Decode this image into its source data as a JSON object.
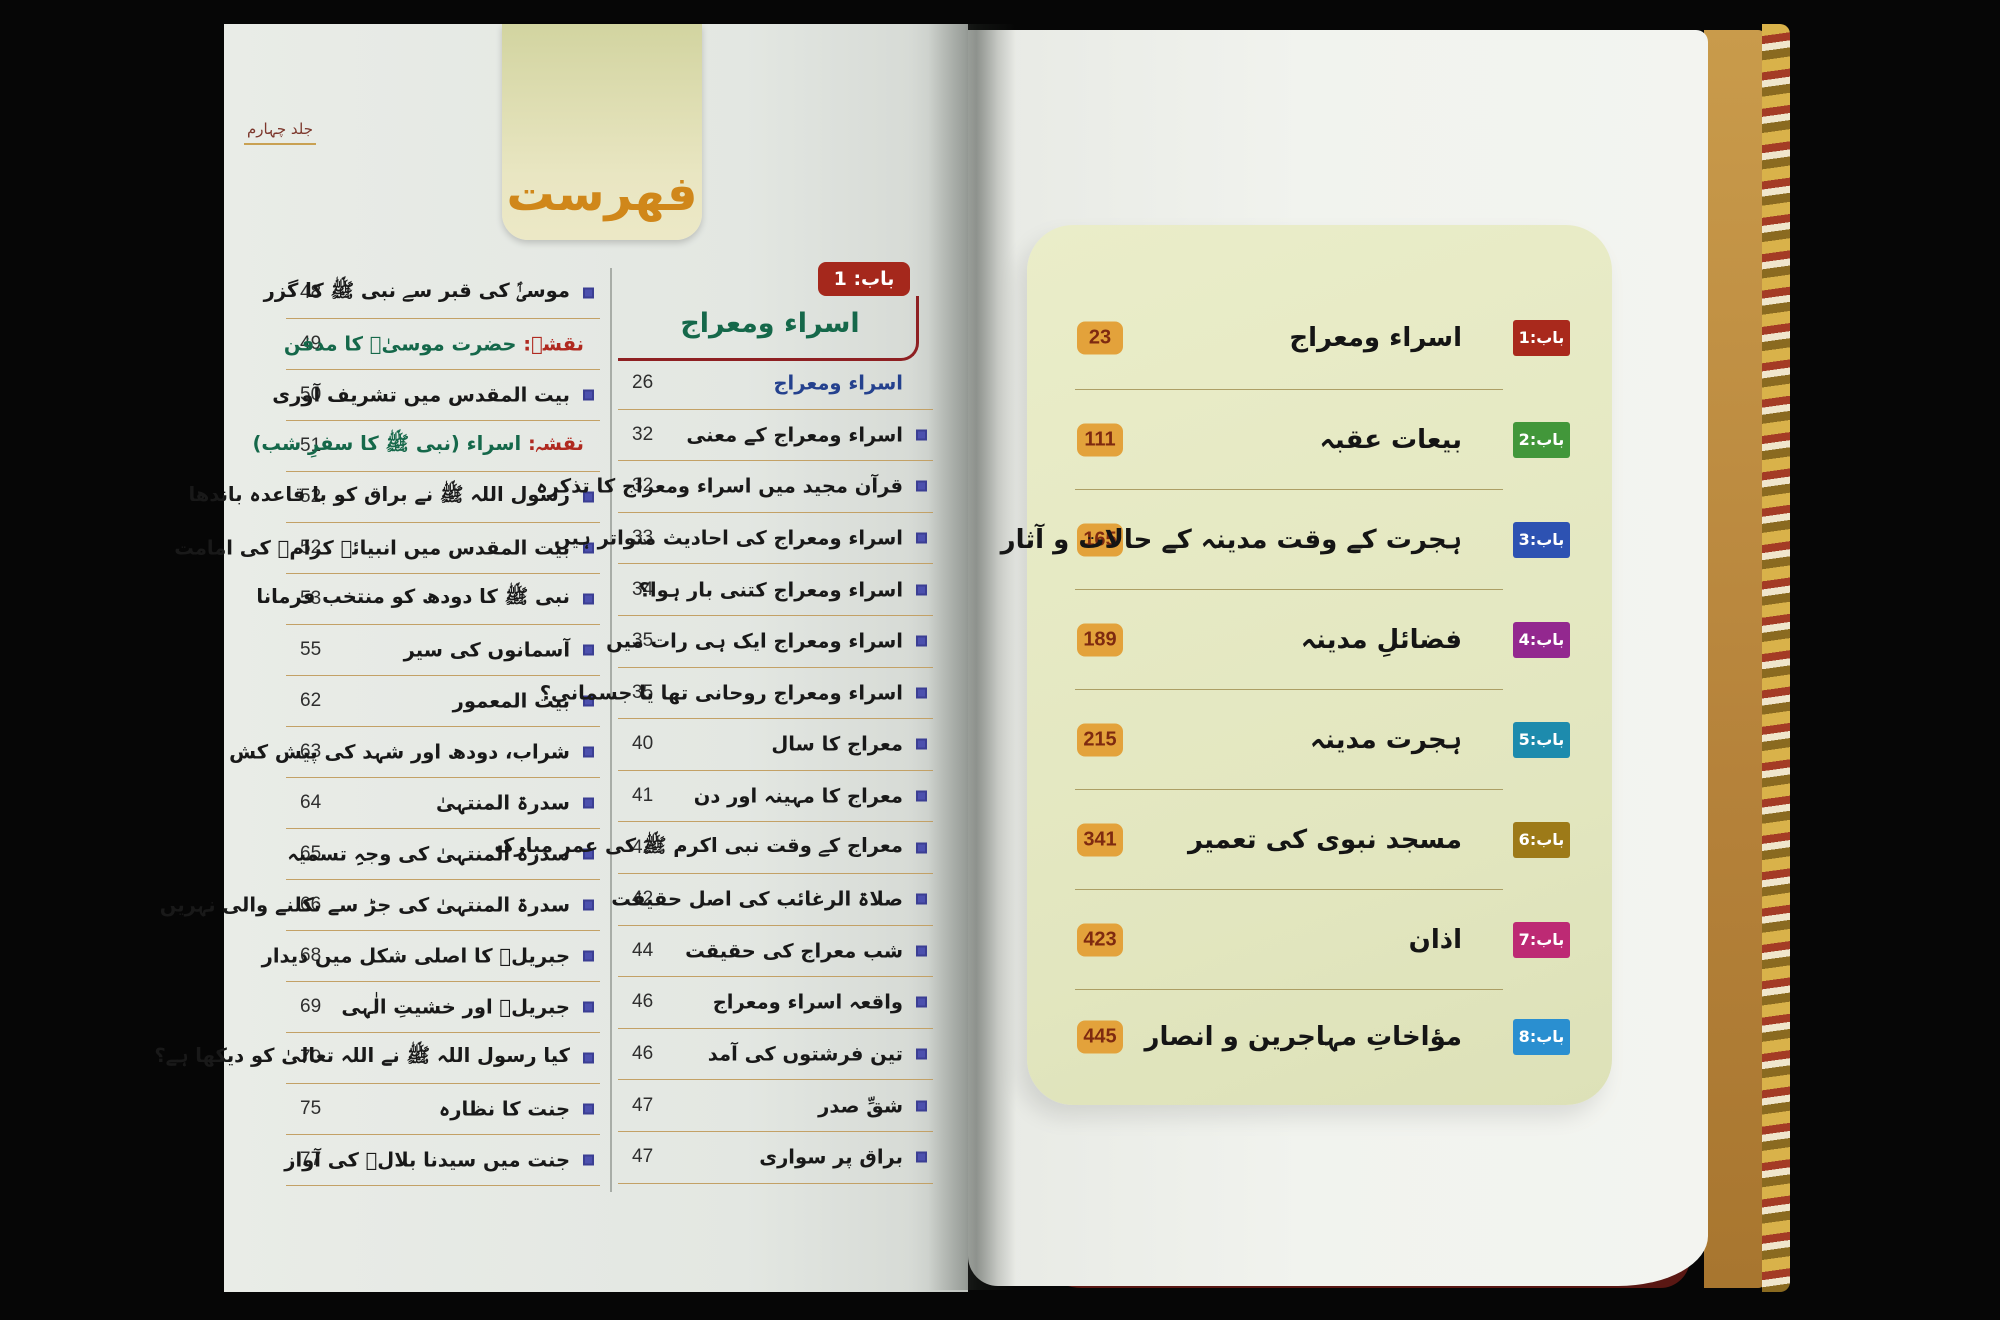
{
  "volume_label": "جلد چہارم",
  "toc_tab_label": "فهرست",
  "left_page": {
    "section_header": {
      "badge": "باب: 1",
      "title": "اسراء ومعراج"
    },
    "column_a": [
      {
        "page": "48",
        "text": "موسیٰؑ کی قبر سے نبی ﷺ کا گزر",
        "bullet": true
      },
      {
        "page": "49",
        "prefix": "نقشہ:",
        "text": "حضرت موسیٰؑ کا مدفن",
        "bullet": false
      },
      {
        "page": "50",
        "text": "بیت المقدس میں تشریف آوری",
        "bullet": true
      },
      {
        "page": "51",
        "prefix": "نقشہ:",
        "text": "اسراء (نبی ﷺ کا سفرِ شب)",
        "bullet": false
      },
      {
        "page": "52",
        "text": "رسول اللہ ﷺ نے براق کو با قاعدہ باندھا",
        "bullet": true
      },
      {
        "page": "52",
        "text": "بیت المقدس میں انبیائے کرامؑ کی امامت",
        "bullet": true
      },
      {
        "page": "53",
        "text": "نبی ﷺ کا دودھ کو منتخب فرمانا",
        "bullet": true
      },
      {
        "page": "55",
        "text": "آسمانوں کی سیر",
        "bullet": true
      },
      {
        "page": "62",
        "text": "بیت المعمور",
        "bullet": true
      },
      {
        "page": "63",
        "text": "شراب، دودھ اور شہد کی پیش کش",
        "bullet": true
      },
      {
        "page": "64",
        "text": "سدرۃ المنتہیٰ",
        "bullet": true
      },
      {
        "page": "65",
        "text": "سدرۃ المنتہیٰ کی وجہِ تسمیہ",
        "bullet": true
      },
      {
        "page": "66",
        "text": "سدرۃ المنتہیٰ کی جڑ سے نکلنے والی نہریں",
        "bullet": true
      },
      {
        "page": "68",
        "text": "جبریلؑ کا اصلی شکل میں دیدار",
        "bullet": true
      },
      {
        "page": "69",
        "text": "جبریلؑ اور خشیتِ الٰہی",
        "bullet": true
      },
      {
        "page": "70",
        "text": "کیا رسول اللہ ﷺ نے اللہ تعالیٰ کو دیکھا ہے؟",
        "bullet": true
      },
      {
        "page": "75",
        "text": "جنت کا نظارہ",
        "bullet": true
      },
      {
        "page": "77",
        "text": "جنت میں سیدنا بلالؓ کی آواز",
        "bullet": true
      }
    ],
    "column_b": [
      {
        "page": "26",
        "text": "اسراء ومعراج",
        "bullet": false,
        "emphasis": true
      },
      {
        "page": "32",
        "text": "اسراء ومعراج کے معنی",
        "bullet": true
      },
      {
        "page": "32",
        "text": "قرآن مجید میں اسراء ومعراج کا تذکرہ",
        "bullet": true
      },
      {
        "page": "33",
        "text": "اسراء ومعراج کی احادیث متواتر ہیں",
        "bullet": true
      },
      {
        "page": "34",
        "text": "اسراء ومعراج کتنی بار ہوا؟",
        "bullet": true
      },
      {
        "page": "35",
        "text": "اسراء ومعراج ایک ہی رات میں",
        "bullet": true
      },
      {
        "page": "35",
        "text": "اسراء ومعراج روحانی تھا یا جسمانی؟",
        "bullet": true
      },
      {
        "page": "40",
        "text": "معراج کا سال",
        "bullet": true
      },
      {
        "page": "41",
        "text": "معراج کا مہینہ اور دن",
        "bullet": true
      },
      {
        "page": "42",
        "text": "معراج کے وقت نبی اکرم ﷺ کی عمر مبارک",
        "bullet": true
      },
      {
        "page": "42",
        "text": "صلاۃ الرغائب کی اصل حقیقت",
        "bullet": true
      },
      {
        "page": "44",
        "text": "شب معراج کی حقیقت",
        "bullet": true
      },
      {
        "page": "46",
        "text": "واقعہ اسراء ومعراج",
        "bullet": true
      },
      {
        "page": "46",
        "text": "تین فرشتوں کی آمد",
        "bullet": true
      },
      {
        "page": "47",
        "text": "شقِّ صدر",
        "bullet": true
      },
      {
        "page": "47",
        "text": "براق پر سواری",
        "bullet": true
      }
    ]
  },
  "right_page": {
    "chapters": [
      {
        "badge": "باب:1",
        "title": "اسراء ومعراج",
        "page": "23",
        "color": "#a9291c"
      },
      {
        "badge": "باب:2",
        "title": "بیعات عقبہ",
        "page": "111",
        "color": "#42973a"
      },
      {
        "badge": "باب:3",
        "title": "ہجرت کے وقت مدینہ کے حالات و آثار",
        "page": "165",
        "color": "#2d52b2"
      },
      {
        "badge": "باب:4",
        "title": "فضائلِ مدینہ",
        "page": "189",
        "color": "#93288f"
      },
      {
        "badge": "باب:5",
        "title": "ہجرت مدینہ",
        "page": "215",
        "color": "#1d8bad"
      },
      {
        "badge": "باب:6",
        "title": "مسجد نبوی کی تعمیر",
        "page": "341",
        "color": "#9d7a18"
      },
      {
        "badge": "باب:7",
        "title": "اذان",
        "page": "423",
        "color": "#bd2a74"
      },
      {
        "badge": "باب:8",
        "title": "مؤاخاتِ مہاجرین و انصار",
        "page": "445",
        "color": "#2a8fd0"
      }
    ]
  },
  "colors": {
    "panel_bg": "#e6e9c4",
    "page_badge_bg": "#e3a23b",
    "page_badge_text": "#7e2a10",
    "gold_line": "#c3a166",
    "bullet_square": "#4c50ae",
    "chapter1_red": "#a5281c",
    "toc_tab_text": "#d0871a",
    "map_prefix_red": "#b02a20",
    "section_green": "#15684a",
    "entry_blue": "#24418e"
  }
}
